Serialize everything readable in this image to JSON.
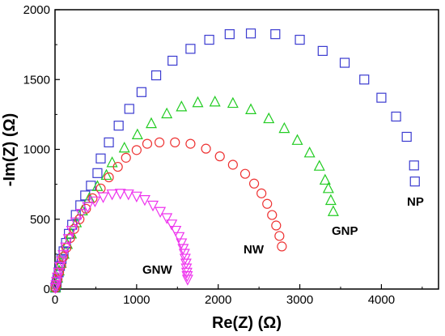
{
  "chart_data": {
    "type": "scatter",
    "title": "",
    "xlabel": "Re(Z) (Ω)",
    "ylabel": "-Im(Z) (Ω)",
    "xlim": [
      0,
      4700
    ],
    "ylim": [
      0,
      2000
    ],
    "x_ticks": [
      "0",
      "1000",
      "2000",
      "3000",
      "4000"
    ],
    "y_ticks": [
      "0",
      "500",
      "1000",
      "1500",
      "2000"
    ],
    "grid": false,
    "legend": "none",
    "series": [
      {
        "name": "NP",
        "marker": "square",
        "color": "#3b3bd0",
        "points": [
          [
            5,
            10
          ],
          [
            10,
            20
          ],
          [
            20,
            45
          ],
          [
            30,
            80
          ],
          [
            45,
            120
          ],
          [
            60,
            165
          ],
          [
            80,
            215
          ],
          [
            105,
            270
          ],
          [
            135,
            330
          ],
          [
            170,
            395
          ],
          [
            210,
            460
          ],
          [
            255,
            530
          ],
          [
            310,
            600
          ],
          [
            370,
            670
          ],
          [
            440,
            740
          ],
          [
            520,
            830
          ],
          [
            560,
            935
          ],
          [
            660,
            1050
          ],
          [
            780,
            1170
          ],
          [
            910,
            1290
          ],
          [
            1060,
            1410
          ],
          [
            1240,
            1530
          ],
          [
            1440,
            1635
          ],
          [
            1660,
            1720
          ],
          [
            1890,
            1785
          ],
          [
            2140,
            1825
          ],
          [
            2400,
            1830
          ],
          [
            2700,
            1825
          ],
          [
            3000,
            1785
          ],
          [
            3280,
            1705
          ],
          [
            3550,
            1620
          ],
          [
            3790,
            1500
          ],
          [
            4000,
            1370
          ],
          [
            4180,
            1235
          ],
          [
            4310,
            1090
          ],
          [
            4400,
            885
          ],
          [
            4410,
            770
          ]
        ]
      },
      {
        "name": "GNP",
        "marker": "triangle-up",
        "color": "#22cc22",
        "points": [
          [
            5,
            10
          ],
          [
            15,
            35
          ],
          [
            30,
            80
          ],
          [
            50,
            130
          ],
          [
            75,
            185
          ],
          [
            110,
            250
          ],
          [
            150,
            320
          ],
          [
            200,
            395
          ],
          [
            260,
            475
          ],
          [
            335,
            560
          ],
          [
            420,
            650
          ],
          [
            520,
            735
          ],
          [
            630,
            815
          ],
          [
            700,
            905
          ],
          [
            850,
            1010
          ],
          [
            1010,
            1105
          ],
          [
            1180,
            1185
          ],
          [
            1370,
            1255
          ],
          [
            1550,
            1305
          ],
          [
            1750,
            1335
          ],
          [
            1960,
            1340
          ],
          [
            2180,
            1330
          ],
          [
            2400,
            1285
          ],
          [
            2620,
            1220
          ],
          [
            2810,
            1150
          ],
          [
            2970,
            1065
          ],
          [
            3120,
            975
          ],
          [
            3240,
            880
          ],
          [
            3310,
            780
          ],
          [
            3350,
            720
          ],
          [
            3380,
            635
          ],
          [
            3410,
            555
          ]
        ]
      },
      {
        "name": "NW",
        "marker": "circle",
        "color": "#ee3333",
        "points": [
          [
            5,
            10
          ],
          [
            15,
            30
          ],
          [
            30,
            70
          ],
          [
            50,
            120
          ],
          [
            75,
            170
          ],
          [
            100,
            230
          ],
          [
            140,
            295
          ],
          [
            185,
            365
          ],
          [
            235,
            430
          ],
          [
            300,
            500
          ],
          [
            380,
            575
          ],
          [
            460,
            650
          ],
          [
            560,
            720
          ],
          [
            660,
            800
          ],
          [
            770,
            875
          ],
          [
            870,
            940
          ],
          [
            1000,
            995
          ],
          [
            1130,
            1040
          ],
          [
            1280,
            1050
          ],
          [
            1470,
            1050
          ],
          [
            1660,
            1040
          ],
          [
            1850,
            1005
          ],
          [
            2020,
            950
          ],
          [
            2180,
            890
          ],
          [
            2330,
            825
          ],
          [
            2440,
            755
          ],
          [
            2530,
            685
          ],
          [
            2600,
            610
          ],
          [
            2660,
            530
          ],
          [
            2710,
            455
          ],
          [
            2750,
            380
          ],
          [
            2780,
            305
          ]
        ]
      },
      {
        "name": "GNW",
        "marker": "triangle-down",
        "color": "#ee33ee",
        "points": [
          [
            5,
            10
          ],
          [
            12,
            30
          ],
          [
            20,
            55
          ],
          [
            30,
            85
          ],
          [
            45,
            120
          ],
          [
            60,
            160
          ],
          [
            80,
            200
          ],
          [
            100,
            245
          ],
          [
            130,
            300
          ],
          [
            165,
            360
          ],
          [
            205,
            420
          ],
          [
            255,
            480
          ],
          [
            320,
            540
          ],
          [
            400,
            590
          ],
          [
            490,
            630
          ],
          [
            590,
            660
          ],
          [
            700,
            680
          ],
          [
            800,
            685
          ],
          [
            900,
            680
          ],
          [
            1000,
            665
          ],
          [
            1100,
            640
          ],
          [
            1200,
            600
          ],
          [
            1290,
            555
          ],
          [
            1370,
            510
          ],
          [
            1430,
            465
          ],
          [
            1480,
            420
          ],
          [
            1520,
            375
          ],
          [
            1550,
            330
          ],
          [
            1570,
            290
          ],
          [
            1585,
            255
          ],
          [
            1595,
            220
          ],
          [
            1605,
            185
          ],
          [
            1610,
            150
          ],
          [
            1615,
            120
          ],
          [
            1620,
            95
          ],
          [
            1625,
            70
          ]
        ]
      }
    ]
  },
  "labels": {
    "np": "NP",
    "gnp": "GNP",
    "nw": "NW",
    "gnw": "GNW"
  }
}
